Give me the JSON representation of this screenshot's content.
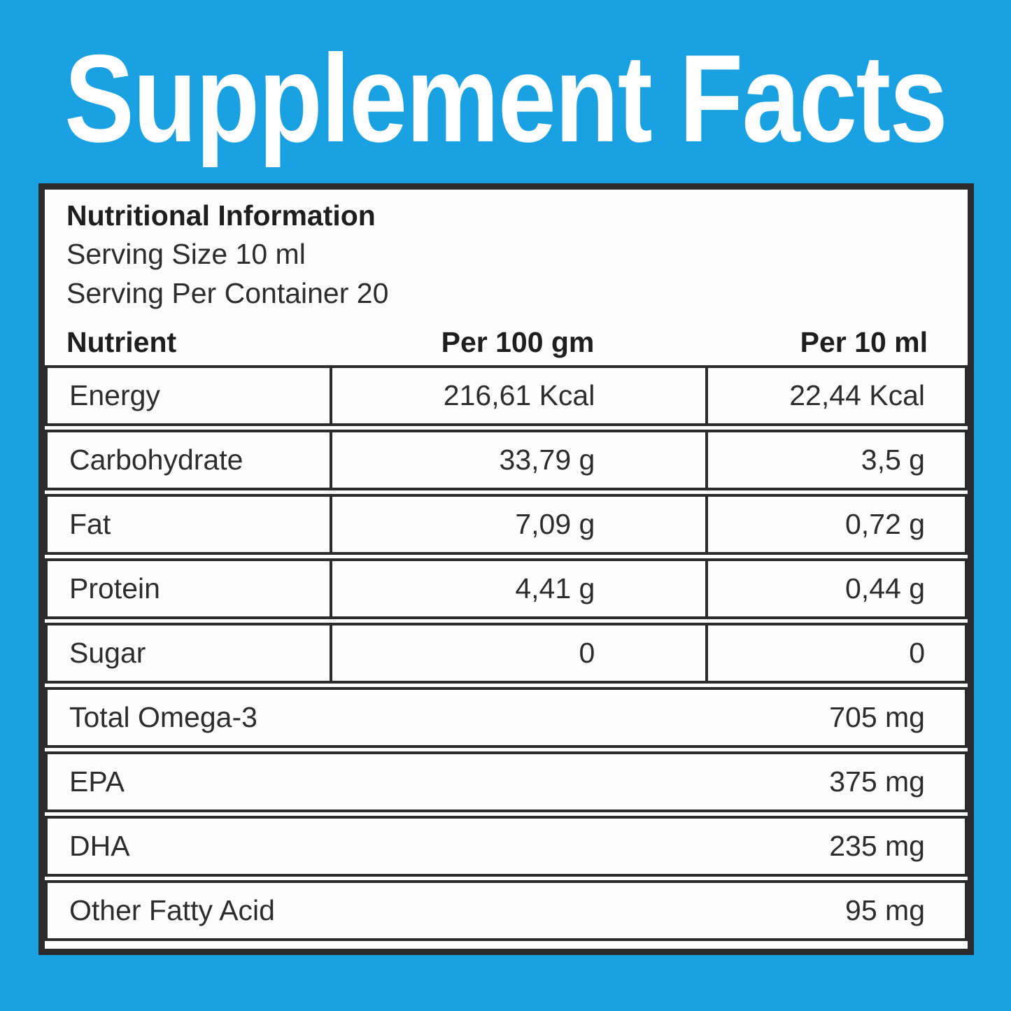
{
  "title": "Supplement Facts",
  "label": {
    "heading": "Nutritional Information",
    "serving_size": "Serving Size 10 ml",
    "servings_per_container": "Serving Per Container 20",
    "columns": {
      "nutrient": "Nutrient",
      "per_100gm": "Per 100 gm",
      "per_10ml": "Per 10 ml"
    },
    "rows": [
      {
        "nutrient": "Energy",
        "per_100gm": "216,61 Kcal",
        "per_10ml": "22,44 Kcal"
      },
      {
        "nutrient": "Carbohydrate",
        "per_100gm": "33,79 g",
        "per_10ml": "3,5 g"
      },
      {
        "nutrient": "Fat",
        "per_100gm": "7,09 g",
        "per_10ml": "0,72 g"
      },
      {
        "nutrient": "Protein",
        "per_100gm": "4,41 g",
        "per_10ml": "0,44 g"
      },
      {
        "nutrient": "Sugar",
        "per_100gm": "0",
        "per_10ml": "0"
      }
    ],
    "summary_rows": [
      {
        "nutrient": "Total Omega-3",
        "amount": "705 mg"
      },
      {
        "nutrient": "EPA",
        "amount": "375 mg"
      },
      {
        "nutrient": "DHA",
        "amount": "235 mg"
      },
      {
        "nutrient": "Other Fatty Acid",
        "amount": "95 mg"
      }
    ]
  },
  "colors": {
    "background": "#1AA1E2",
    "border": "#2B2B2B",
    "panel": "#FDFDFD",
    "title": "#FFFFFF",
    "text": "#2D2D2D",
    "heading_text": "#1E1E1E"
  }
}
